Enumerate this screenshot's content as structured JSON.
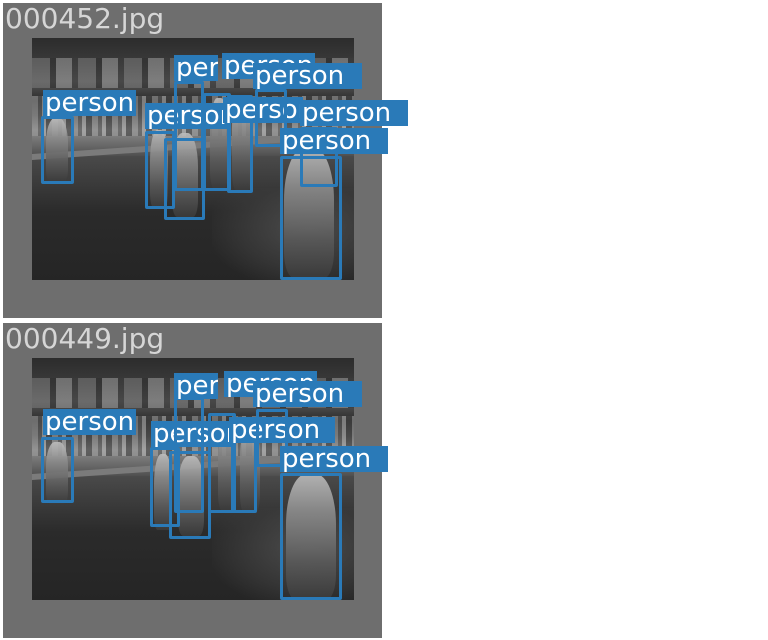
{
  "panels": [
    {
      "title": "000452.jpg"
    },
    {
      "title": "000449.jpg"
    }
  ],
  "detections": {
    "label": "person",
    "color": "#2a7ab8"
  }
}
